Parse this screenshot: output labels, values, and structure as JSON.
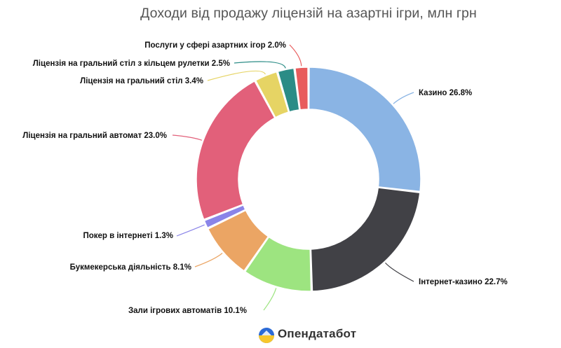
{
  "chart_data": {
    "type": "pie",
    "title": "Доходи від продажу ліцензій на азартні ігри, млн грн",
    "slices": [
      {
        "label": "Казино",
        "value": 26.8,
        "display": "Казино 26.8%",
        "color": "#8ab4e4"
      },
      {
        "label": "Інтернет-казино",
        "value": 22.7,
        "display": "Інтернет-казино 22.7%",
        "color": "#414146"
      },
      {
        "label": "Зали ігрових автоматів",
        "value": 10.1,
        "display": "Зали ігрових автоматів 10.1%",
        "color": "#9de480"
      },
      {
        "label": "Букмекерська діяльність",
        "value": 8.1,
        "display": "Букмекерська діяльність 8.1%",
        "color": "#eba564"
      },
      {
        "label": "Покер в інтернеті",
        "value": 1.3,
        "display": "Покер в інтернеті 1.3%",
        "color": "#8a84e8"
      },
      {
        "label": "Ліцензія на гральний автомат",
        "value": 23.0,
        "display": "Ліцензія на гральний автомат 23.0%",
        "color": "#e2607a"
      },
      {
        "label": "Ліцензія на гральний стіл",
        "value": 3.4,
        "display": "Ліцензія на гральний стіл 3.4%",
        "color": "#e6d464"
      },
      {
        "label": "Ліцензія на гральний стіл з кільцем рулетки",
        "value": 2.5,
        "display": "Ліцензія на гральний стіл з кільцем рулетки 2.5%",
        "color": "#2b8c86"
      },
      {
        "label": "Послуги у сфері азартних ігор",
        "value": 2.0,
        "display": "Послуги у сфері азартних ігор 2.0%",
        "color": "#e85c5c"
      }
    ]
  },
  "brand": {
    "name": "Опендатабот"
  }
}
